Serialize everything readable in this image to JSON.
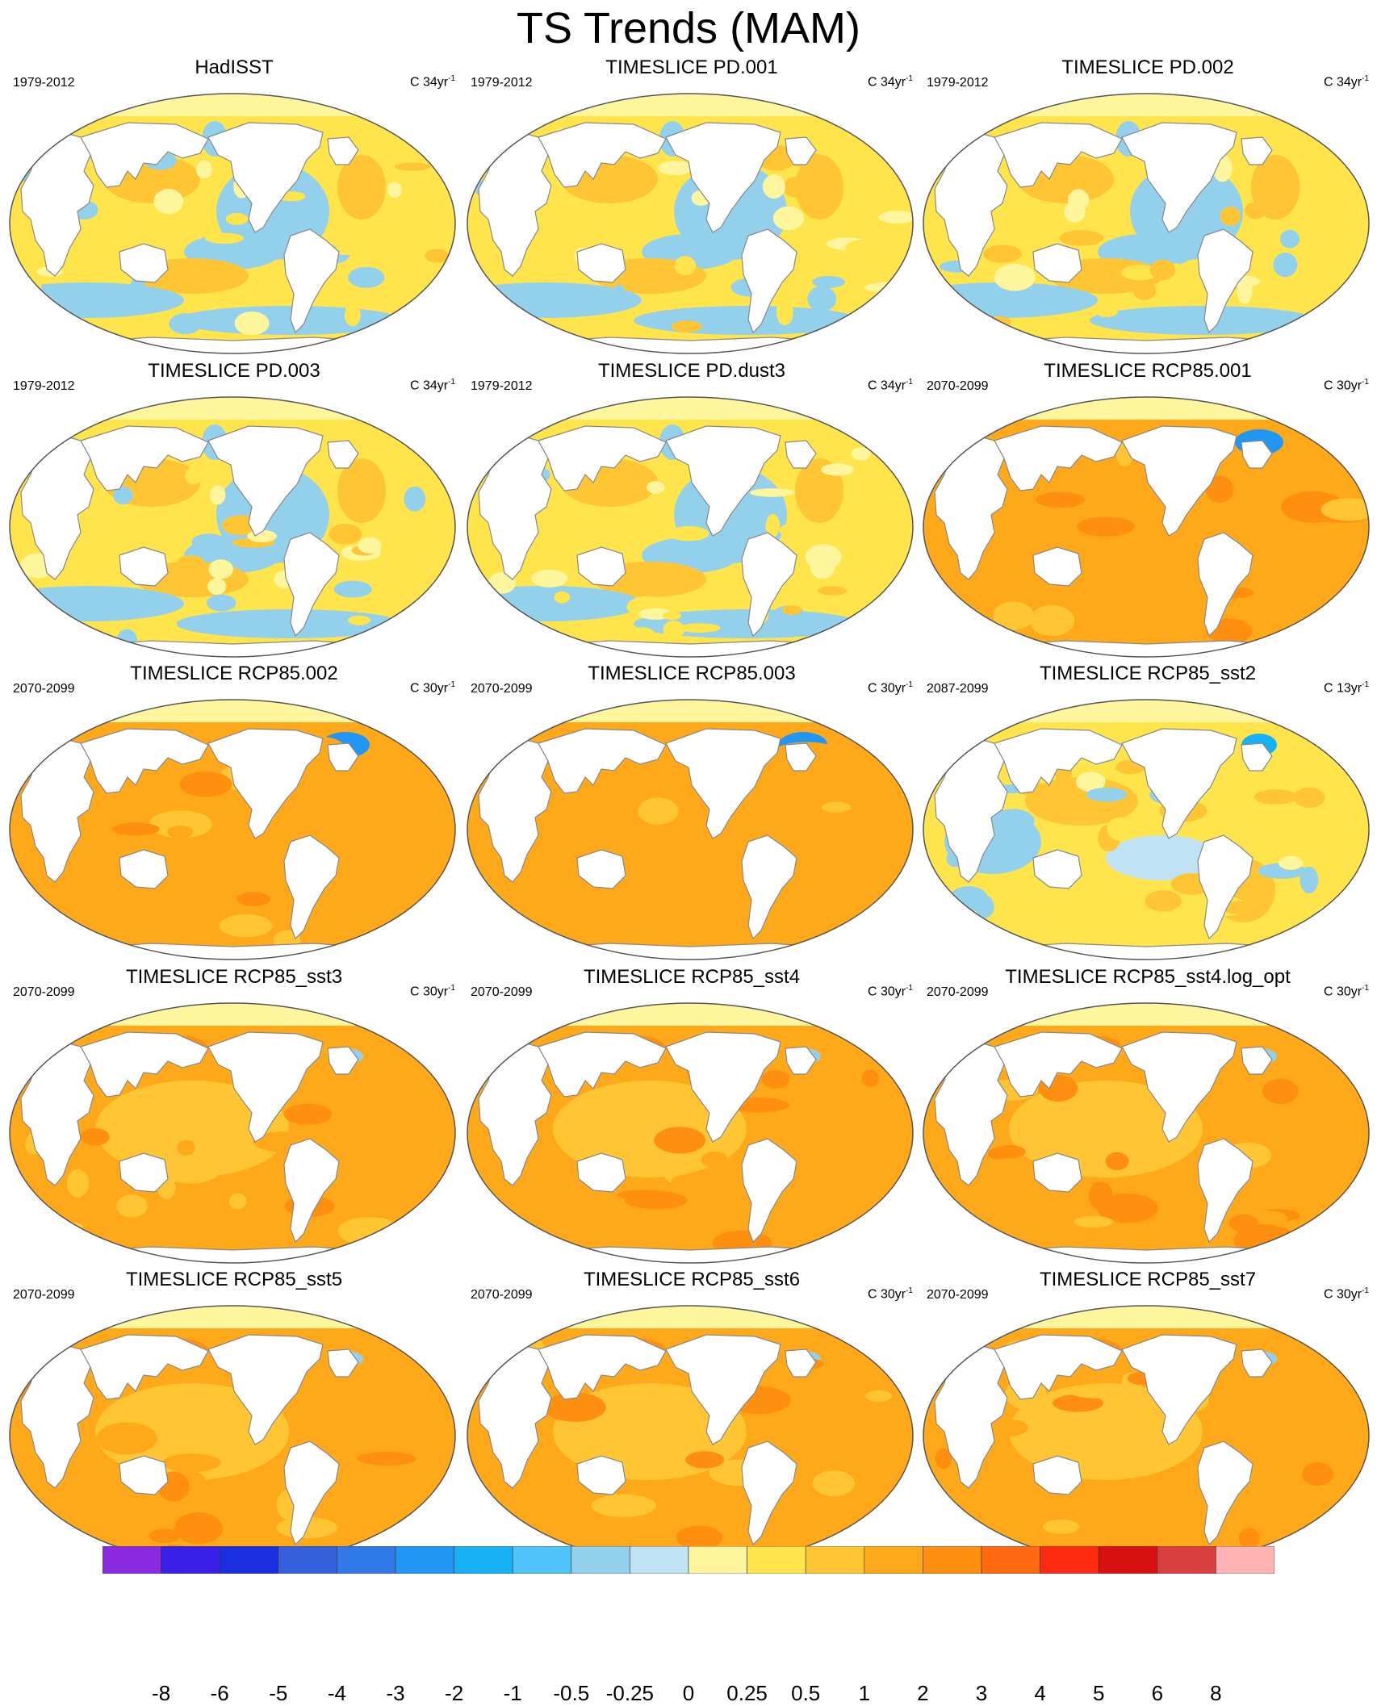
{
  "title": "TS Trends (MAM)",
  "panels": [
    {
      "title": "HadISST",
      "period": "1979-2012",
      "units": "C 34yr",
      "units_exp": "-1",
      "pattern": "obs"
    },
    {
      "title": "TIMESLICE PD.001",
      "period": "1979-2012",
      "units": "C 34yr",
      "units_exp": "-1",
      "pattern": "obs"
    },
    {
      "title": "TIMESLICE PD.002",
      "period": "1979-2012",
      "units": "C 34yr",
      "units_exp": "-1",
      "pattern": "obs"
    },
    {
      "title": "TIMESLICE PD.003",
      "period": "1979-2012",
      "units": "C 34yr",
      "units_exp": "-1",
      "pattern": "obs"
    },
    {
      "title": "TIMESLICE PD.dust3",
      "period": "1979-2012",
      "units": "C 34yr",
      "units_exp": "-1",
      "pattern": "obs"
    },
    {
      "title": "TIMESLICE RCP85.001",
      "period": "2070-2099",
      "units": "C 30yr",
      "units_exp": "-1",
      "pattern": "warm-natl"
    },
    {
      "title": "TIMESLICE RCP85.002",
      "period": "2070-2099",
      "units": "C 30yr",
      "units_exp": "-1",
      "pattern": "warm-natl"
    },
    {
      "title": "TIMESLICE RCP85.003",
      "period": "2070-2099",
      "units": "C 30yr",
      "units_exp": "-1",
      "pattern": "warm-natl"
    },
    {
      "title": "TIMESLICE RCP85_sst2",
      "period": "2087-2099",
      "units": "C 13yr",
      "units_exp": "-1",
      "pattern": "mixed"
    },
    {
      "title": "TIMESLICE RCP85_sst3",
      "period": "2070-2099",
      "units": "C 30yr",
      "units_exp": "-1",
      "pattern": "warm-light"
    },
    {
      "title": "TIMESLICE RCP85_sst4",
      "period": "2070-2099",
      "units": "C 30yr",
      "units_exp": "-1",
      "pattern": "warm-light"
    },
    {
      "title": "TIMESLICE RCP85_sst4.log_opt",
      "period": "2070-2099",
      "units": "C 30yr",
      "units_exp": "-1",
      "pattern": "warm-light"
    },
    {
      "title": "TIMESLICE RCP85_sst5",
      "period": "2070-2099",
      "units": "",
      "units_exp": "",
      "pattern": "warm-light"
    },
    {
      "title": "TIMESLICE RCP85_sst6",
      "period": "2070-2099",
      "units": "C 30yr",
      "units_exp": "-1",
      "pattern": "warm-light"
    },
    {
      "title": "TIMESLICE RCP85_sst7",
      "period": "2070-2099",
      "units": "C 30yr",
      "units_exp": "-1",
      "pattern": "warm-light"
    }
  ],
  "colorbar": {
    "colors": [
      "#8a2be2",
      "#3a1fe8",
      "#1a2fe0",
      "#3560dc",
      "#2f7ae8",
      "#2196f3",
      "#17b2f6",
      "#4fc3f7",
      "#93d0ec",
      "#bfe3f5",
      "#fff59d",
      "#ffe44c",
      "#ffc533",
      "#ffa91a",
      "#ff8f0f",
      "#ff6a10",
      "#ff2a10",
      "#d81010",
      "#d84040",
      "#ffb3b3"
    ],
    "labels": [
      "-8",
      "-6",
      "-5",
      "-4",
      "-3",
      "-2",
      "-1",
      "-0.5",
      "-0.25",
      "0",
      "0.25",
      "0.5",
      "1",
      "2",
      "3",
      "4",
      "5",
      "6",
      "8"
    ]
  },
  "palette": {
    "land": "#ffffff",
    "arctic": "#fff59d",
    "coast": "#888888"
  }
}
